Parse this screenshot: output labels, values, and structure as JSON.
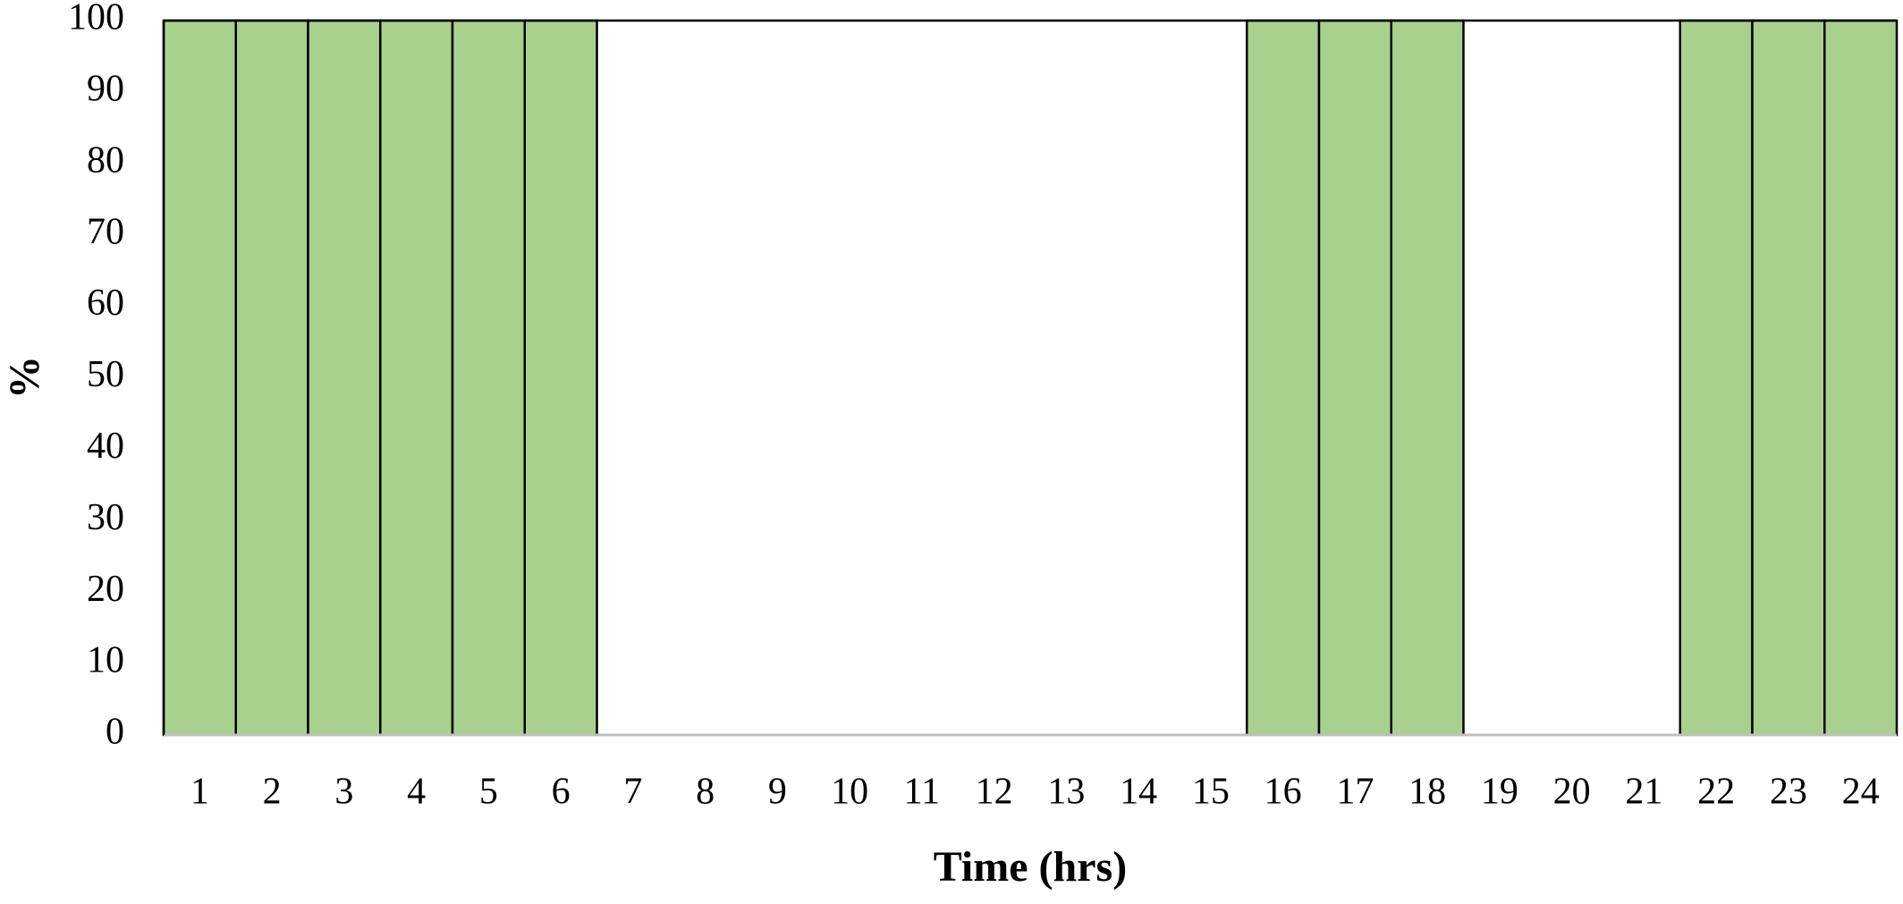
{
  "chart_data": {
    "type": "bar",
    "x_label": "Time (hrs)",
    "y_label": "%",
    "categories": [
      "1",
      "2",
      "3",
      "4",
      "5",
      "6",
      "7",
      "8",
      "9",
      "10",
      "11",
      "12",
      "13",
      "14",
      "15",
      "16",
      "17",
      "18",
      "19",
      "20",
      "21",
      "22",
      "23",
      "24"
    ],
    "values": [
      100,
      100,
      100,
      100,
      100,
      100,
      0,
      0,
      0,
      0,
      0,
      0,
      0,
      0,
      0,
      100,
      100,
      100,
      0,
      0,
      0,
      100,
      100,
      100
    ],
    "color": "#a9d18e",
    "ylim": [
      0,
      100
    ],
    "yticks": [
      0,
      10,
      20,
      30,
      40,
      50,
      60,
      70,
      80,
      90,
      100
    ],
    "grid": false
  }
}
